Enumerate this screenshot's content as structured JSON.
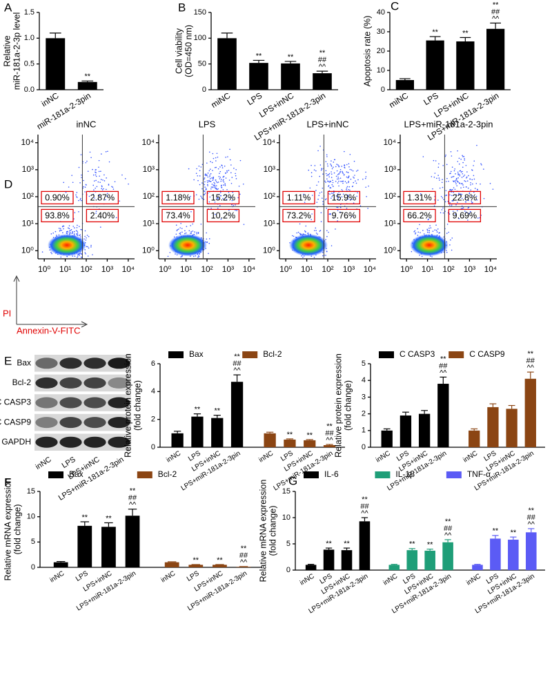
{
  "chart_data": [
    {
      "type": "bar",
      "panel": "A",
      "ylabel": [
        "Relative",
        "miR-181a-2-3p level"
      ],
      "categories": [
        "inNC",
        "miR-181a-2-3pin"
      ],
      "series": [
        {
          "color": "#000000",
          "values": [
            1.0,
            0.15
          ],
          "errors": [
            0.1,
            0.02
          ],
          "annotations": [
            null,
            [
              "**"
            ]
          ]
        }
      ],
      "ylim": [
        0,
        1.5
      ],
      "yticks": [
        {
          "value": 0,
          "label": "0.0"
        },
        {
          "value": 0.5,
          "label": "0.5"
        },
        {
          "value": 1,
          "label": "1.0"
        },
        {
          "value": 1.5,
          "label": "1.5"
        }
      ]
    },
    {
      "type": "bar",
      "panel": "B",
      "ylabel": [
        "Cell viability",
        "(OD=450 nm)"
      ],
      "categories": [
        "miNC",
        "LPS",
        "LPS+inNC",
        "LPS+miR-181a-2-3pin"
      ],
      "series": [
        {
          "color": "#000000",
          "values": [
            100,
            52,
            51,
            32
          ],
          "errors": [
            10,
            5,
            4,
            4
          ],
          "annotations": [
            null,
            [
              "**"
            ],
            [
              "**"
            ],
            [
              "**",
              "##",
              "^^"
            ]
          ]
        }
      ],
      "ylim": [
        0,
        150
      ],
      "yticks": [
        0,
        50,
        100,
        150
      ]
    },
    {
      "type": "bar",
      "panel": "C",
      "ylabel": [
        "Apoptosis rate (%)"
      ],
      "categories": [
        "miNC",
        "LPS",
        "LPS+inNC",
        "LPS+miR-181a-2-3pin"
      ],
      "series": [
        {
          "color": "#000000",
          "values": [
            5,
            25.5,
            25,
            31.5
          ],
          "errors": [
            0.7,
            2,
            2,
            3
          ],
          "annotations": [
            null,
            [
              "**"
            ],
            [
              "**"
            ],
            [
              "**",
              "##",
              "^^"
            ]
          ]
        }
      ],
      "ylim": [
        0,
        40
      ],
      "yticks": [
        0,
        10,
        20,
        30,
        40
      ]
    },
    {
      "type": "flow",
      "panel": "D",
      "xlabel": "Annexin-V-FITC",
      "ylabel": "PI",
      "log": true,
      "xlim": [
        0.5,
        20000
      ],
      "ylim": [
        0.5,
        20000
      ],
      "xticks": [
        {
          "value": 1,
          "label": "10⁰"
        },
        {
          "value": 10,
          "label": "10¹"
        },
        {
          "value": 100,
          "label": "10²"
        },
        {
          "value": 1000,
          "label": "10³"
        },
        {
          "value": 10000,
          "label": "10⁴"
        }
      ],
      "yticks": [
        {
          "value": 1,
          "label": "10⁰"
        },
        {
          "value": 10,
          "label": "10¹"
        },
        {
          "value": 100,
          "label": "10²"
        },
        {
          "value": 1000,
          "label": "10³"
        },
        {
          "value": 10000,
          "label": "10⁴"
        }
      ],
      "panels": [
        {
          "title": "inNC",
          "values": [
            0.9,
            2.87,
            93.8,
            2.4
          ],
          "value_labels": [
            "0.90%",
            "2.87%",
            "93.8%",
            "2.40%"
          ]
        },
        {
          "title": "LPS",
          "values": [
            1.18,
            15.2,
            73.4,
            10.2
          ],
          "value_labels": [
            "1.18%",
            "15.2%",
            "73.4%",
            "10.2%"
          ]
        },
        {
          "title": "LPS+inNC",
          "values": [
            1.11,
            15.9,
            73.2,
            9.76
          ],
          "value_labels": [
            "1.11%",
            "15.9%",
            "73.2%",
            "9.76%"
          ]
        },
        {
          "title": "LPS+miR-181a-2-3pin",
          "values": [
            1.31,
            22.8,
            66.2,
            9.69
          ],
          "value_labels": [
            "1.31%",
            "22.8%",
            "66.2%",
            "9.69%"
          ]
        }
      ]
    },
    {
      "type": "blot",
      "panel": "E",
      "rows": [
        "Bax",
        "Bcl-2",
        "C CASP3",
        "C CASP9",
        "GAPDH"
      ],
      "lanes": [
        "inNC",
        "LPS",
        "LPS+inNC",
        "LPS+miR-181a-2-3pin"
      ]
    },
    {
      "type": "bar",
      "ylabel": [
        "Relative protein expression",
        "(fold change)"
      ],
      "legend": "top",
      "categories": [
        "inNC",
        "LPS",
        "LPS+inNC",
        "LPS+miR-181a-2-3pin"
      ],
      "series": [
        {
          "name": "Bax",
          "color": "#000000",
          "values": [
            1,
            2.2,
            2.1,
            4.7
          ],
          "errors": [
            0.15,
            0.2,
            0.2,
            0.5
          ],
          "annotations": [
            null,
            [
              "**"
            ],
            [
              "**"
            ],
            [
              "**",
              "##",
              "^^"
            ]
          ]
        },
        {
          "name": "Bcl-2",
          "color": "#8b4513",
          "values": [
            1,
            0.55,
            0.5,
            0.15
          ],
          "errors": [
            0.08,
            0.05,
            0.05,
            0.05
          ],
          "annotations": [
            null,
            [
              "**"
            ],
            [
              "**"
            ],
            [
              "**",
              "##",
              "^^"
            ]
          ]
        }
      ],
      "ylim": [
        0,
        6
      ],
      "yticks": [
        0,
        2,
        4,
        6
      ]
    },
    {
      "type": "bar",
      "ylabel": [
        "Relative protein expression",
        "(fold change)"
      ],
      "legend": "top",
      "categories": [
        "inNC",
        "LPS",
        "LPS+inNC",
        "LPS+miR-181a-2-3pin"
      ],
      "series": [
        {
          "name": "C CASP3",
          "color": "#000000",
          "values": [
            1,
            1.9,
            2,
            3.8
          ],
          "errors": [
            0.1,
            0.2,
            0.2,
            0.4
          ],
          "annotations": [
            null,
            null,
            null,
            [
              "**",
              "##",
              "^^"
            ]
          ]
        },
        {
          "name": "C CASP9",
          "color": "#8b4513",
          "values": [
            1,
            2.4,
            2.3,
            4.1
          ],
          "errors": [
            0.1,
            0.2,
            0.2,
            0.4
          ],
          "annotations": [
            null,
            null,
            null,
            [
              "**",
              "##",
              "^^"
            ]
          ]
        }
      ],
      "ylim": [
        0,
        5
      ],
      "yticks": [
        0,
        1,
        2,
        3,
        4,
        5
      ]
    },
    {
      "type": "bar",
      "panel": "F",
      "ylabel": [
        "Relative mRNA expression",
        "(fold change)"
      ],
      "legend": "top",
      "categories": [
        "inNC",
        "LPS",
        "LPS+inNC",
        "LPS+miR-181a-2-3pin"
      ],
      "series": [
        {
          "name": "Bax",
          "color": "#000000",
          "values": [
            1,
            8.2,
            8,
            10.2
          ],
          "errors": [
            0.15,
            0.8,
            0.8,
            1.3
          ],
          "annotations": [
            null,
            [
              "**"
            ],
            [
              "**"
            ],
            [
              "**",
              "##",
              "^^"
            ]
          ]
        },
        {
          "name": "Bcl-2",
          "color": "#8b4513",
          "values": [
            1,
            0.5,
            0.5,
            0.1
          ],
          "errors": [
            0.1,
            0.05,
            0.05,
            0.05
          ],
          "annotations": [
            null,
            [
              "**"
            ],
            [
              "**"
            ],
            [
              "**",
              "##",
              "^^"
            ]
          ]
        }
      ],
      "ylim": [
        0,
        15
      ],
      "yticks": [
        0,
        5,
        10,
        15
      ]
    },
    {
      "type": "bar",
      "panel": "G",
      "ylabel": [
        "Relative mRNA expression",
        "(fold change)"
      ],
      "legend": "top",
      "categories": [
        "inNC",
        "LPS",
        "LPS+inNC",
        "LPS+miR-181a-2-3pin"
      ],
      "series": [
        {
          "name": "IL-6",
          "color": "#000000",
          "values": [
            1,
            3.9,
            3.8,
            9.3
          ],
          "errors": [
            0.1,
            0.3,
            0.4,
            0.7
          ],
          "annotations": [
            null,
            [
              "**"
            ],
            [
              "**"
            ],
            [
              "**",
              "##",
              "^^"
            ]
          ]
        },
        {
          "name": "IL-1β",
          "color": "#1f9e78",
          "values": [
            1,
            3.8,
            3.7,
            5.3
          ],
          "errors": [
            0.1,
            0.3,
            0.3,
            0.5
          ],
          "annotations": [
            null,
            [
              "**"
            ],
            [
              "**"
            ],
            [
              "**",
              "##",
              "^^"
            ]
          ]
        },
        {
          "name": "TNF-α",
          "color": "#5b5bf5",
          "values": [
            1,
            6,
            5.8,
            7.2
          ],
          "errors": [
            0.1,
            0.6,
            0.5,
            0.7
          ],
          "annotations": [
            null,
            [
              "**"
            ],
            [
              "**"
            ],
            [
              "**",
              "##",
              "^^"
            ]
          ]
        }
      ],
      "ylim": [
        0,
        15
      ],
      "yticks": [
        0,
        5,
        10,
        15
      ]
    }
  ]
}
